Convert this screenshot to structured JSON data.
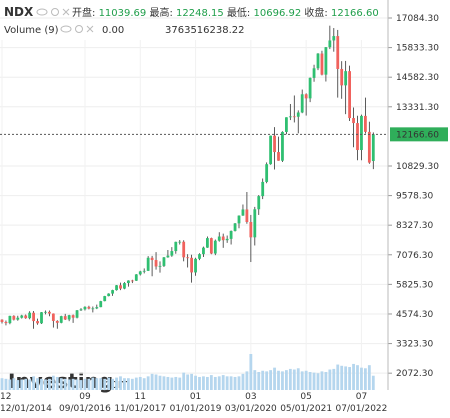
{
  "chart_data": {
    "type": "candlestick",
    "symbol": "NDX",
    "header_labels": [
      "开盘:",
      "最高:",
      "最低:",
      "收盘:"
    ],
    "last_labels": [
      "11039.69",
      "12248.15",
      "10696.92",
      "12166.60"
    ],
    "volume_title": "Volume (9)",
    "volume_labels": [
      "0.00",
      "3763516238.22"
    ],
    "watermark": [
      "Investing",
      ".com"
    ],
    "up_color": "#2fbf71",
    "down_color": "#f0625d",
    "volume_color": "#b5d6ee",
    "ylim": [
      1361,
      17845
    ],
    "yticks": [
      {
        "value": 17084.3,
        "label": "17084.30"
      },
      {
        "value": 15833.3,
        "label": "15833.30"
      },
      {
        "value": 14582.3,
        "label": "14582.30"
      },
      {
        "value": 13331.3,
        "label": "13331.30"
      },
      {
        "value": 10829.3,
        "label": "10829.30"
      },
      {
        "value": 9578.3,
        "label": "9578.30"
      },
      {
        "value": 8327.3,
        "label": "8327.30"
      },
      {
        "value": 7076.3,
        "label": "7076.30"
      },
      {
        "value": 5825.3,
        "label": "5825.30"
      },
      {
        "value": 4574.3,
        "label": "4574.30"
      },
      {
        "value": 3323.3,
        "label": "3323.30"
      },
      {
        "value": 2072.3,
        "label": "2072.30"
      }
    ],
    "grid": true,
    "categories": [
      "12/01/2014",
      null,
      null,
      null,
      null,
      null,
      null,
      null,
      null,
      null,
      null,
      null,
      null,
      null,
      null,
      null,
      null,
      null,
      null,
      null,
      null,
      "09/01/2016",
      null,
      null,
      null,
      null,
      null,
      null,
      null,
      null,
      null,
      null,
      null,
      null,
      null,
      "11/01/2017",
      null,
      null,
      null,
      null,
      null,
      null,
      null,
      null,
      null,
      null,
      null,
      null,
      null,
      "01/01/2019",
      null,
      null,
      null,
      null,
      null,
      null,
      null,
      null,
      null,
      null,
      null,
      null,
      null,
      "03/01/2020",
      null,
      null,
      null,
      null,
      null,
      null,
      null,
      null,
      null,
      null,
      null,
      null,
      null,
      "05/01/2021",
      null,
      null,
      null,
      null,
      null,
      null,
      null,
      null,
      null,
      null,
      null,
      null,
      null,
      "07/01/2022",
      null,
      null,
      null
    ],
    "months": [
      "12",
      null,
      null,
      null,
      null,
      null,
      null,
      null,
      null,
      null,
      null,
      null,
      null,
      null,
      null,
      null,
      null,
      null,
      null,
      null,
      null,
      "09",
      null,
      null,
      null,
      null,
      null,
      null,
      null,
      null,
      null,
      null,
      null,
      null,
      null,
      "11",
      null,
      null,
      null,
      null,
      null,
      null,
      null,
      null,
      null,
      null,
      null,
      null,
      null,
      "01",
      null,
      null,
      null,
      null,
      null,
      null,
      null,
      null,
      null,
      null,
      null,
      null,
      null,
      "03",
      null,
      null,
      null,
      null,
      null,
      null,
      null,
      null,
      null,
      null,
      null,
      null,
      null,
      "05",
      null,
      null,
      null,
      null,
      null,
      null,
      null,
      null,
      null,
      null,
      null,
      null,
      null,
      "07",
      null,
      null,
      null
    ],
    "ohlc": [
      [
        4335,
        4350,
        4170,
        4236
      ],
      [
        4236,
        4300,
        4090,
        4189
      ],
      [
        4189,
        4500,
        4140,
        4494
      ],
      [
        4494,
        4520,
        4300,
        4334
      ],
      [
        4334,
        4500,
        4290,
        4415
      ],
      [
        4415,
        4540,
        4380,
        4509
      ],
      [
        4509,
        4550,
        4370,
        4396
      ],
      [
        4396,
        4690,
        4350,
        4628
      ],
      [
        4628,
        4700,
        3950,
        4274
      ],
      [
        4274,
        4380,
        4120,
        4181
      ],
      [
        4181,
        4660,
        4150,
        4648
      ],
      [
        4648,
        4720,
        4560,
        4664
      ],
      [
        4664,
        4720,
        4480,
        4593
      ],
      [
        4593,
        4600,
        4000,
        4280
      ],
      [
        4280,
        4310,
        3950,
        4201
      ],
      [
        4201,
        4500,
        4180,
        4483
      ],
      [
        4483,
        4580,
        4320,
        4341
      ],
      [
        4341,
        4540,
        4270,
        4523
      ],
      [
        4523,
        4550,
        4200,
        4417
      ],
      [
        4417,
        4740,
        4390,
        4730
      ],
      [
        4730,
        4820,
        4700,
        4771
      ],
      [
        4771,
        4900,
        4720,
        4875
      ],
      [
        4875,
        4920,
        4770,
        4801
      ],
      [
        4801,
        4890,
        4640,
        4810
      ],
      [
        4810,
        4970,
        4780,
        4863
      ],
      [
        4863,
        5130,
        4860,
        5117
      ],
      [
        5117,
        5340,
        5110,
        5330
      ],
      [
        5330,
        5450,
        5320,
        5436
      ],
      [
        5436,
        5600,
        5340,
        5583
      ],
      [
        5583,
        5800,
        5560,
        5788
      ],
      [
        5788,
        5900,
        5580,
        5646
      ],
      [
        5646,
        5920,
        5620,
        5880
      ],
      [
        5880,
        6000,
        5730,
        5988
      ],
      [
        5988,
        6020,
        5880,
        5979
      ],
      [
        5979,
        6260,
        5970,
        6248
      ],
      [
        6248,
        6400,
        6200,
        6373
      ],
      [
        6373,
        6500,
        6290,
        6397
      ],
      [
        6397,
        7020,
        6390,
        6950
      ],
      [
        6950,
        7030,
        6170,
        6854
      ],
      [
        6854,
        7190,
        6450,
        6581
      ],
      [
        6581,
        6800,
        6320,
        6605
      ],
      [
        6605,
        6980,
        6560,
        6967
      ],
      [
        6967,
        7280,
        6950,
        7040
      ],
      [
        7040,
        7400,
        6990,
        7233
      ],
      [
        7233,
        7630,
        7120,
        7623
      ],
      [
        7623,
        7700,
        7510,
        7627
      ],
      [
        7627,
        7690,
        6800,
        6968
      ],
      [
        6968,
        7100,
        6540,
        6949
      ],
      [
        6949,
        7080,
        5900,
        6330
      ],
      [
        6330,
        6950,
        6190,
        6906
      ],
      [
        6906,
        7140,
        6850,
        7103
      ],
      [
        7103,
        7420,
        6980,
        7378
      ],
      [
        7378,
        7850,
        7370,
        7781
      ],
      [
        7781,
        7800,
        7100,
        7128
      ],
      [
        7128,
        7720,
        7060,
        7671
      ],
      [
        7671,
        8030,
        7630,
        7848
      ],
      [
        7848,
        7970,
        7370,
        7692
      ],
      [
        7692,
        7890,
        7580,
        7749
      ],
      [
        7749,
        8100,
        7510,
        8084
      ],
      [
        8084,
        8420,
        8060,
        8403
      ],
      [
        8403,
        8740,
        8200,
        8733
      ],
      [
        8733,
        9200,
        8720,
        8992
      ],
      [
        8992,
        9730,
        8390,
        8462
      ],
      [
        8462,
        8760,
        6770,
        7813
      ],
      [
        7813,
        9100,
        7470,
        9000
      ],
      [
        9000,
        9600,
        8760,
        9555
      ],
      [
        9555,
        10300,
        9430,
        10156
      ],
      [
        10156,
        10980,
        10100,
        10905
      ],
      [
        10905,
        12120,
        10880,
        12111
      ],
      [
        12111,
        12470,
        10680,
        11418
      ],
      [
        11418,
        12070,
        11050,
        11052
      ],
      [
        11052,
        12300,
        11000,
        12268
      ],
      [
        12268,
        12890,
        12170,
        12888
      ],
      [
        12888,
        13450,
        12770,
        12925
      ],
      [
        12925,
        13810,
        12670,
        12910
      ],
      [
        12910,
        13180,
        12210,
        13091
      ],
      [
        13091,
        14060,
        13060,
        13860
      ],
      [
        13860,
        13900,
        12960,
        13687
      ],
      [
        13687,
        14570,
        13530,
        14554
      ],
      [
        14554,
        15110,
        14390,
        14959
      ],
      [
        14959,
        15600,
        14880,
        15582
      ],
      [
        15582,
        15700,
        14660,
        14690
      ],
      [
        14690,
        15860,
        14400,
        15850
      ],
      [
        15850,
        16760,
        15770,
        16135
      ],
      [
        16135,
        16660,
        15660,
        16320
      ],
      [
        16320,
        16580,
        13720,
        14930
      ],
      [
        14930,
        15260,
        13670,
        14237
      ],
      [
        14237,
        15270,
        13020,
        14838
      ],
      [
        14838,
        15070,
        12730,
        12855
      ],
      [
        12855,
        13300,
        11620,
        12643
      ],
      [
        12643,
        12950,
        11070,
        11504
      ],
      [
        11504,
        13000,
        11070,
        12947
      ],
      [
        12947,
        13720,
        12200,
        12272
      ],
      [
        12272,
        12700,
        10920,
        10971
      ],
      [
        11039.69,
        12248.15,
        10696.92,
        12166.6
      ]
    ],
    "volume": [
      1900000000.0,
      1800000000.0,
      1700000000.0,
      1900000000.0,
      1600000000.0,
      1700000000.0,
      1800000000.0,
      1700000000.0,
      2200000000.0,
      1900000000.0,
      1800000000.0,
      1700000000.0,
      1800000000.0,
      2300000000.0,
      2100000000.0,
      1900000000.0,
      1800000000.0,
      1700000000.0,
      1800000000.0,
      1700000000.0,
      1600000000.0,
      1800000000.0,
      1800000000.0,
      2000000000.0,
      1900000000.0,
      1900000000.0,
      1800000000.0,
      2000000000.0,
      1800000000.0,
      2000000000.0,
      2200000000.0,
      1900000000.0,
      1900000000.0,
      1800000000.0,
      2000000000.0,
      2100000000.0,
      1900000000.0,
      2200000000.0,
      2600000000.0,
      2500000000.0,
      2300000000.0,
      2200000000.0,
      2100000000.0,
      2000000000.0,
      2100000000.0,
      2000000000.0,
      2800000000.0,
      2500000000.0,
      2600000000.0,
      2300000000.0,
      2100000000.0,
      2200000000.0,
      2100000000.0,
      2400000000.0,
      2100000000.0,
      2200000000.0,
      2400000000.0,
      2200000000.0,
      2200000000.0,
      2100000000.0,
      2200000000.0,
      2600000000.0,
      3000000000.0,
      5800000000.0,
      3200000000.0,
      2900000000.0,
      3100000000.0,
      3000000000.0,
      3200000000.0,
      3600000000.0,
      3100000000.0,
      3000000000.0,
      3200000000.0,
      3400000000.0,
      3300000000.0,
      3500000000.0,
      3000000000.0,
      3100000000.0,
      2900000000.0,
      2800000000.0,
      2700000000.0,
      3000000000.0,
      2900000000.0,
      3300000000.0,
      3400000000.0,
      4100000000.0,
      3900000000.0,
      3800000000.0,
      3700000000.0,
      4200000000.0,
      4000000000.0,
      3600000000.0,
      3500000000.0,
      4000000000.0,
      2300000000.0
    ]
  }
}
